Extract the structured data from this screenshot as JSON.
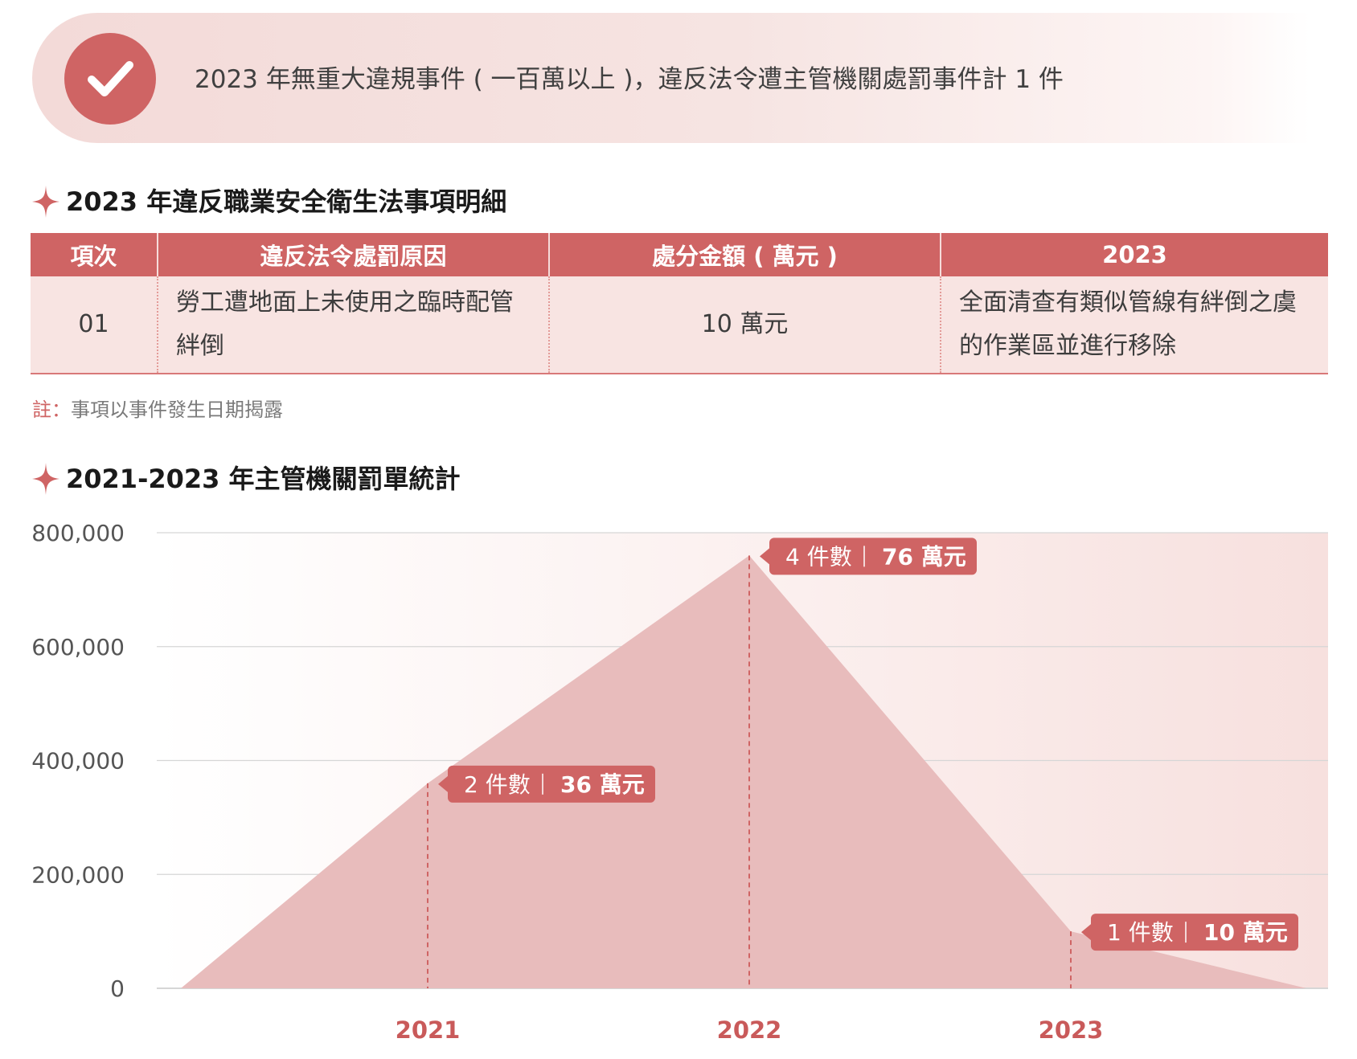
{
  "banner": {
    "text": "2023 年無重大違規事件 ( 一百萬以上 )，違反法令遭主管機關處罰事件計 1 件",
    "icon": "check-icon",
    "accent": "#cf6464"
  },
  "section1": {
    "title": "2023 年違反職業安全衛生法事項明細"
  },
  "table": {
    "headers": [
      "項次",
      "違反法令處罰原因",
      "處分金額 ( 萬元 )",
      "2023"
    ],
    "rows": [
      {
        "item": "01",
        "reason": "勞工遭地面上未使用之臨時配管絆倒",
        "amount": "10 萬元",
        "action": "全面清查有類似管線有絆倒之虞的作業區並進行移除"
      }
    ]
  },
  "note": {
    "lead": "註：",
    "text": "事項以事件發生日期揭露"
  },
  "section2": {
    "title": "2021-2023 年主管機關罰單統計"
  },
  "chart_data": {
    "type": "area",
    "x": [
      "2021",
      "2022",
      "2023"
    ],
    "values": [
      360000,
      760000,
      100000
    ],
    "labels": [
      {
        "count": "2 件數",
        "amount": "36 萬元"
      },
      {
        "count": "4 件數",
        "amount": "76 萬元"
      },
      {
        "count": "1 件數",
        "amount": "10 萬元"
      }
    ],
    "y_ticks": [
      "800,000",
      "600,000",
      "400,000",
      "200,000",
      "0"
    ],
    "y_tick_values": [
      800000,
      600000,
      400000,
      200000,
      0
    ],
    "ylim": [
      0,
      800000
    ],
    "grid": true,
    "colors": {
      "area": "#e8bcbc",
      "accent": "#cf6464",
      "x_tick": "#c95a5a",
      "grid": "#d6d6d6"
    }
  }
}
